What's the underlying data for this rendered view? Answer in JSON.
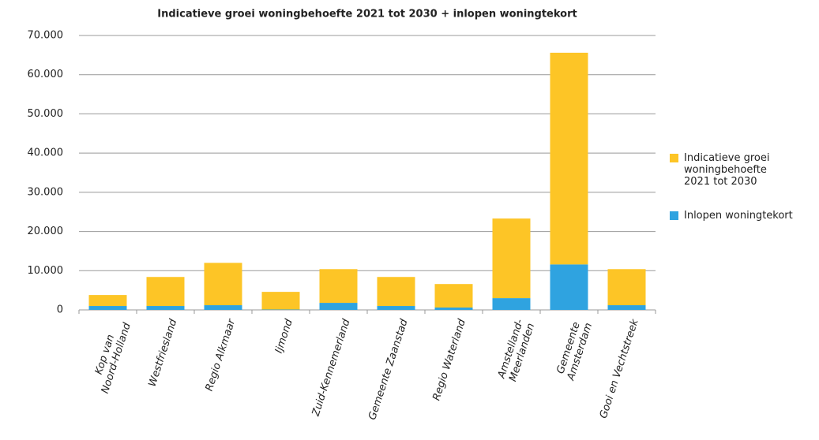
{
  "chart_data": {
    "type": "stacked_bar",
    "title": "Indicatieve groei woningbehoefte 2021 tot 2030 + inlopen woningtekort",
    "categories": [
      "Kop van\nNoord-Holland",
      "Westfriesland",
      "Regio Alkmaar",
      "Ijmond",
      "Zuid-Kennemerland",
      "Gemeente Zaanstad",
      "Regio Waterland",
      "Amstelland-\nMeerlanden",
      "Gemeente\nAmsterdam",
      "Gooi en Vechtstreek"
    ],
    "series": [
      {
        "name": "Inlopen woningtekort",
        "color": "#2fa3e0",
        "values": [
          1000,
          1000,
          1200,
          100,
          1800,
          1000,
          600,
          3000,
          11600,
          1200
        ]
      },
      {
        "name": "Indicatieve groei\nwoningbehoefte\n2021 tot 2030",
        "color": "#fdc526",
        "values": [
          2800,
          7400,
          10800,
          4500,
          8600,
          7400,
          6000,
          20300,
          54000,
          9200
        ]
      }
    ],
    "ylim": [
      0,
      70000
    ],
    "yticks": [
      0,
      {
        "value": 10000,
        "label": "10.000"
      },
      {
        "value": 20000,
        "label": "20.000"
      },
      {
        "value": 30000,
        "label": "30.000"
      },
      {
        "value": 40000,
        "label": "40.000"
      },
      {
        "value": 50000,
        "label": "50.000"
      },
      {
        "value": 60000,
        "label": "60.000"
      },
      {
        "value": 70000,
        "label": "70.000"
      }
    ],
    "grid": true,
    "legend": "right"
  }
}
